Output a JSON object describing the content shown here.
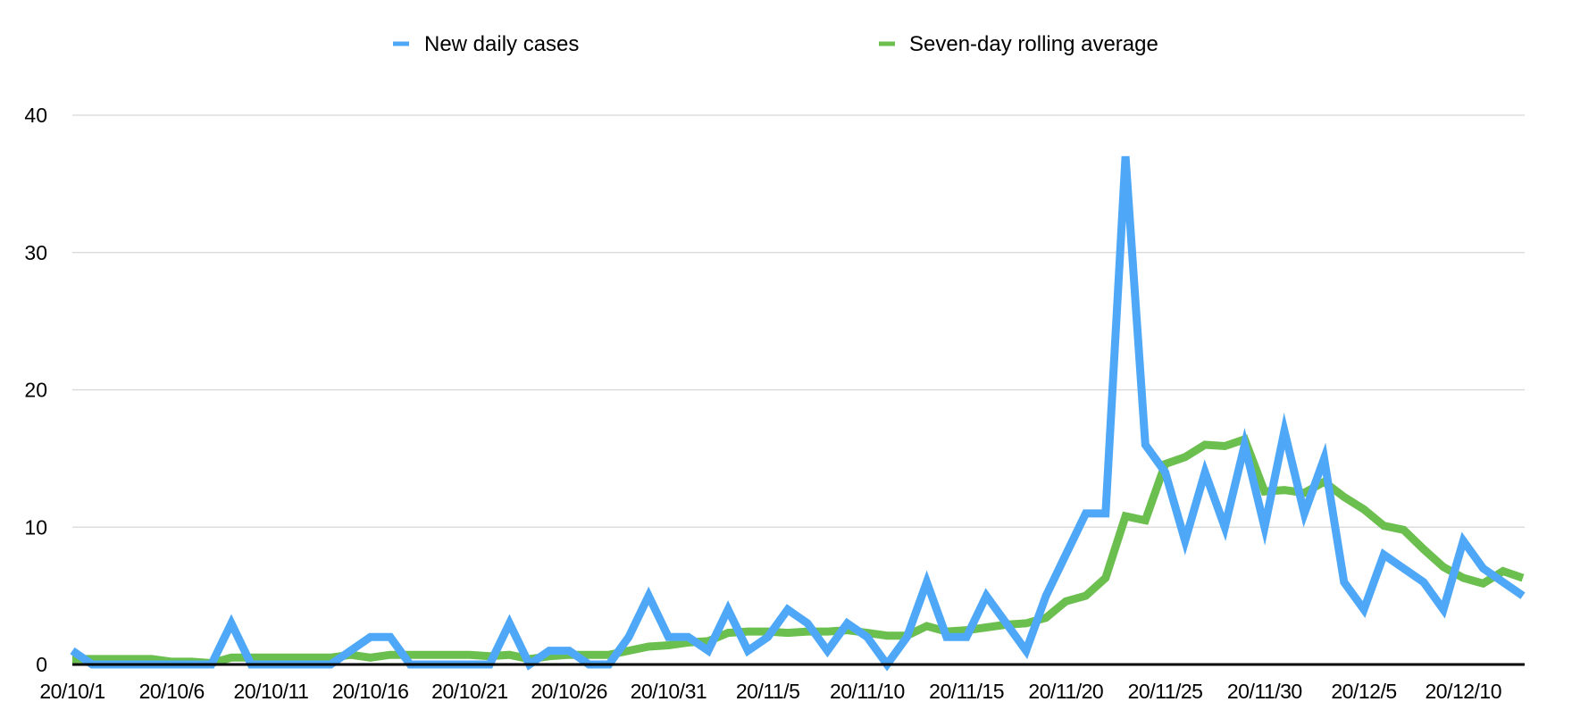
{
  "chart_data": {
    "type": "line",
    "title": "",
    "xlabel": "",
    "ylabel": "",
    "ylim": [
      0,
      40
    ],
    "yticks": [
      0,
      10,
      20,
      30,
      40
    ],
    "ytick_labels": [
      "0",
      "10",
      "20",
      "30",
      "40"
    ],
    "grid": true,
    "legend_position": "top-center",
    "x": [
      "20/10/1",
      "20/10/2",
      "20/10/3",
      "20/10/4",
      "20/10/5",
      "20/10/6",
      "20/10/7",
      "20/10/8",
      "20/10/9",
      "20/10/10",
      "20/10/11",
      "20/10/12",
      "20/10/13",
      "20/10/14",
      "20/10/15",
      "20/10/16",
      "20/10/17",
      "20/10/18",
      "20/10/19",
      "20/10/20",
      "20/10/21",
      "20/10/22",
      "20/10/23",
      "20/10/24",
      "20/10/25",
      "20/10/26",
      "20/10/27",
      "20/10/28",
      "20/10/29",
      "20/10/30",
      "20/10/31",
      "20/11/1",
      "20/11/2",
      "20/11/3",
      "20/11/4",
      "20/11/5",
      "20/11/6",
      "20/11/7",
      "20/11/8",
      "20/11/9",
      "20/11/10",
      "20/11/11",
      "20/11/12",
      "20/11/13",
      "20/11/14",
      "20/11/15",
      "20/11/16",
      "20/11/17",
      "20/11/18",
      "20/11/19",
      "20/11/20",
      "20/11/21",
      "20/11/22",
      "20/11/23",
      "20/11/24",
      "20/11/25",
      "20/11/26",
      "20/11/27",
      "20/11/28",
      "20/11/29",
      "20/11/30",
      "20/12/1",
      "20/12/2",
      "20/12/3",
      "20/12/4",
      "20/12/5",
      "20/12/6",
      "20/12/7",
      "20/12/8",
      "20/12/9",
      "20/12/10",
      "20/12/11",
      "20/12/12",
      "20/12/13"
    ],
    "xtick_labels": [
      "20/10/1",
      "20/10/6",
      "20/10/11",
      "20/10/16",
      "20/10/21",
      "20/10/26",
      "20/10/31",
      "20/11/5",
      "20/11/10",
      "20/11/15",
      "20/11/20",
      "20/11/25",
      "20/11/30",
      "20/12/5",
      "20/12/10"
    ],
    "xtick_step": 5,
    "series": [
      {
        "name": "New daily cases",
        "color": "#4FA8F7",
        "values": [
          1,
          0,
          0,
          0,
          0,
          0,
          0,
          0,
          3,
          0,
          0,
          0,
          0,
          0,
          1,
          2,
          2,
          0,
          0,
          0,
          0,
          0,
          3,
          0,
          1,
          1,
          0,
          0,
          2,
          5,
          2,
          2,
          1,
          4,
          1,
          2,
          4,
          3,
          1,
          3,
          2,
          0,
          2,
          6,
          2,
          2,
          5,
          3,
          1,
          5,
          8,
          11,
          11,
          37,
          16,
          14,
          9,
          14,
          10,
          16,
          10,
          17,
          11,
          15,
          6,
          4,
          8,
          7,
          6,
          4,
          9,
          7,
          6,
          5
        ]
      },
      {
        "name": "Seven-day rolling average",
        "color": "#6BBF4E",
        "values": [
          0.4,
          0.4,
          0.4,
          0.4,
          0.4,
          0.2,
          0.2,
          0.1,
          0.5,
          0.5,
          0.5,
          0.5,
          0.5,
          0.5,
          0.7,
          0.5,
          0.7,
          0.7,
          0.7,
          0.7,
          0.7,
          0.6,
          0.7,
          0.4,
          0.6,
          0.7,
          0.7,
          0.7,
          1.0,
          1.3,
          1.4,
          1.6,
          1.7,
          2.3,
          2.4,
          2.4,
          2.3,
          2.4,
          2.4,
          2.5,
          2.3,
          2.1,
          2.1,
          2.8,
          2.4,
          2.5,
          2.7,
          2.9,
          3.0,
          3.4,
          4.6,
          5.0,
          6.3,
          10.8,
          10.5,
          14.6,
          15.1,
          16.0,
          15.9,
          16.4,
          12.6,
          12.7,
          12.5,
          13.3,
          12.2,
          11.3,
          10.1,
          9.8,
          8.4,
          7.1,
          6.3,
          5.9,
          6.8,
          6.3
        ]
      }
    ]
  }
}
